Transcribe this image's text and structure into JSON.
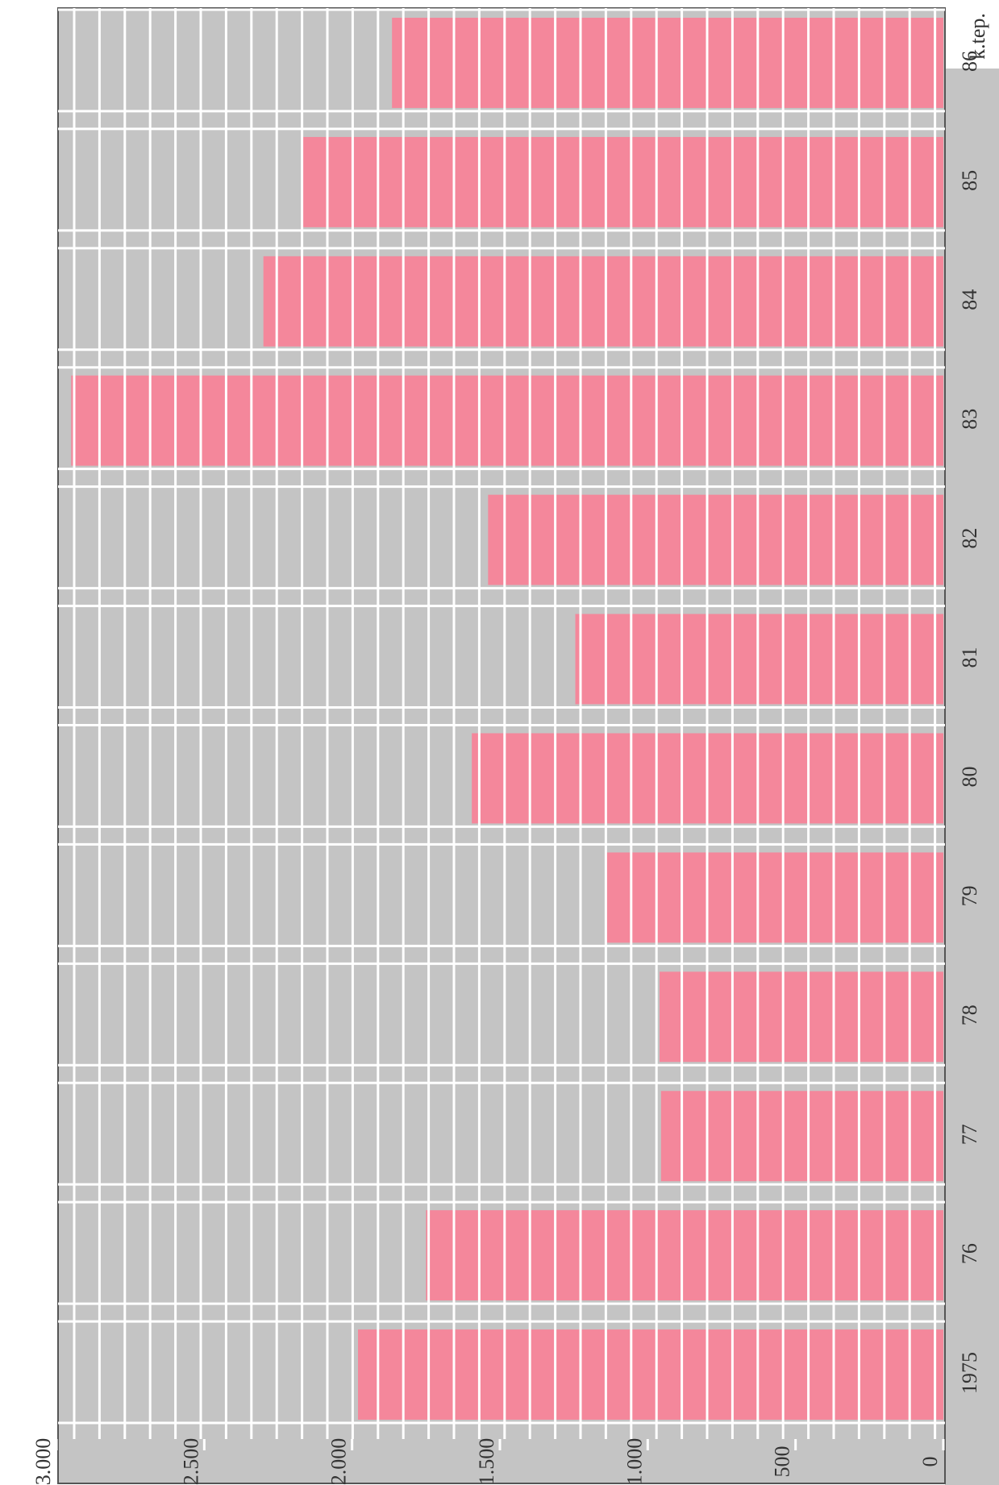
{
  "chart_data": {
    "type": "bar",
    "orientation": "horizontal",
    "unit_label": "k.tep.",
    "categories": [
      "1975",
      "76",
      "77",
      "78",
      "79",
      "80",
      "81",
      "82",
      "83",
      "84",
      "85",
      "86"
    ],
    "values": [
      1980,
      1750,
      955,
      960,
      1145,
      1595,
      1245,
      1540,
      2950,
      2300,
      2170,
      1865
    ],
    "color": "#f4879b",
    "xlim": [
      0,
      3000
    ],
    "xticks": [
      0,
      500,
      {
        "value": 1000,
        "label": "1.000"
      },
      {
        "value": 1500,
        "label": "1.500"
      },
      {
        "value": 2000,
        "label": "2.000"
      },
      {
        "value": 2500,
        "label": "2.500"
      },
      {
        "value": 3000,
        "label": "3.000"
      }
    ]
  }
}
